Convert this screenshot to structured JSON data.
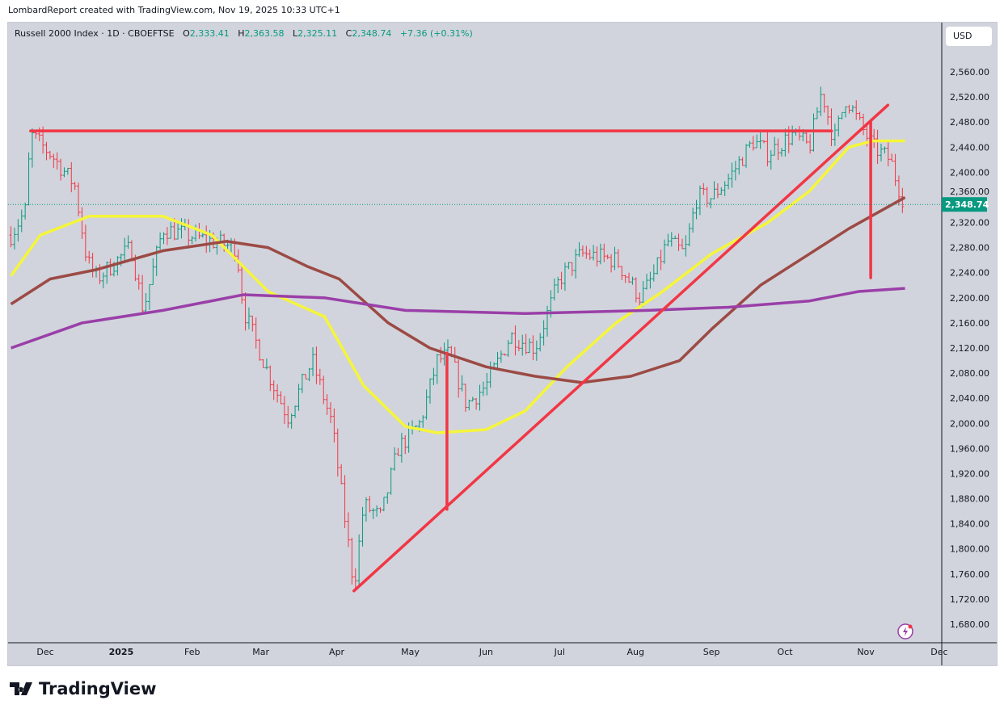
{
  "credit": "LombardReport created with TradingView.com, Nov 19, 2025 10:33 UTC+1",
  "legend": {
    "symbol": "Russell 2000 Index · 1D · CBOEFTSE",
    "o_label": "O",
    "o": "2,333.41",
    "h_label": "H",
    "h": "2,363.58",
    "l_label": "L",
    "l": "2,325.11",
    "c_label": "C",
    "c": "2,348.74",
    "change": "+7.36 (+0.31%)"
  },
  "currency": "USD",
  "brand": "TradingView",
  "colors": {
    "up": "#089981",
    "down": "#f23645",
    "ma_yellow": "#f5f53a",
    "ma_brown": "#9c4a45",
    "ma_purple": "#9a3fa8",
    "drawing": "#f23645",
    "bg": "#d1d4dc"
  },
  "chart_data": {
    "type": "ohlc",
    "title": "Russell 2000 Index · 1D · CBOEFTSE",
    "ylim": [
      1655,
      2600
    ],
    "xlim_days": [
      -15,
      382
    ],
    "x_unit": "days since Dec 1 2024",
    "last_price": 2348.74,
    "last_price_label": "2,348.74",
    "y_ticks": [
      2560,
      2520,
      2480,
      2440,
      2400,
      2360,
      2320,
      2280,
      2240,
      2200,
      2160,
      2120,
      2080,
      2040,
      2000,
      1960,
      1920,
      1880,
      1840,
      1800,
      1760,
      1720,
      1680
    ],
    "x_ticks": [
      {
        "label": "Dec",
        "day": 0
      },
      {
        "label": "2025",
        "day": 31
      },
      {
        "label": "Feb",
        "day": 60
      },
      {
        "label": "Mar",
        "day": 88
      },
      {
        "label": "Apr",
        "day": 119
      },
      {
        "label": "May",
        "day": 149
      },
      {
        "label": "Jun",
        "day": 180
      },
      {
        "label": "Jul",
        "day": 210
      },
      {
        "label": "Aug",
        "day": 241
      },
      {
        "label": "Sep",
        "day": 272
      },
      {
        "label": "Oct",
        "day": 302
      },
      {
        "label": "Nov",
        "day": 335
      },
      {
        "label": "Dec",
        "day": 365
      }
    ],
    "price_path": [
      [
        -14,
        2300
      ],
      [
        -8,
        2340
      ],
      [
        -6,
        2460
      ],
      [
        2,
        2430
      ],
      [
        12,
        2380
      ],
      [
        17,
        2260
      ],
      [
        21,
        2230
      ],
      [
        35,
        2280
      ],
      [
        40,
        2180
      ],
      [
        48,
        2310
      ],
      [
        58,
        2300
      ],
      [
        68,
        2290
      ],
      [
        78,
        2280
      ],
      [
        81,
        2180
      ],
      [
        91,
        2080
      ],
      [
        99,
        2010
      ],
      [
        109,
        2100
      ],
      [
        117,
        2000
      ],
      [
        124,
        1800
      ],
      [
        126,
        1740
      ],
      [
        130,
        1870
      ],
      [
        137,
        1850
      ],
      [
        144,
        1960
      ],
      [
        153,
        2000
      ],
      [
        160,
        2100
      ],
      [
        165,
        2110
      ],
      [
        172,
        2030
      ],
      [
        180,
        2060
      ],
      [
        190,
        2140
      ],
      [
        200,
        2120
      ],
      [
        210,
        2230
      ],
      [
        219,
        2270
      ],
      [
        233,
        2260
      ],
      [
        243,
        2200
      ],
      [
        249,
        2240
      ],
      [
        254,
        2290
      ],
      [
        261,
        2270
      ],
      [
        266,
        2360
      ],
      [
        272,
        2360
      ],
      [
        279,
        2390
      ],
      [
        289,
        2450
      ],
      [
        295,
        2430
      ],
      [
        305,
        2460
      ],
      [
        312,
        2440
      ],
      [
        317,
        2530
      ],
      [
        322,
        2450
      ],
      [
        327,
        2520
      ],
      [
        332,
        2480
      ],
      [
        338,
        2440
      ],
      [
        345,
        2420
      ],
      [
        348,
        2380
      ],
      [
        351,
        2349
      ]
    ],
    "series": [
      {
        "name": "MA yellow",
        "color": "#f5f53a",
        "points": [
          [
            -14,
            2235
          ],
          [
            -2,
            2300
          ],
          [
            18,
            2330
          ],
          [
            48,
            2330
          ],
          [
            68,
            2300
          ],
          [
            91,
            2210
          ],
          [
            114,
            2170
          ],
          [
            130,
            2060
          ],
          [
            147,
            1995
          ],
          [
            160,
            1985
          ],
          [
            180,
            1990
          ],
          [
            196,
            2020
          ],
          [
            213,
            2090
          ],
          [
            233,
            2160
          ],
          [
            252,
            2210
          ],
          [
            272,
            2270
          ],
          [
            295,
            2320
          ],
          [
            312,
            2370
          ],
          [
            328,
            2440
          ],
          [
            338,
            2450
          ],
          [
            351,
            2450
          ]
        ]
      },
      {
        "name": "MA brown",
        "color": "#9c4a45",
        "points": [
          [
            -14,
            2190
          ],
          [
            2,
            2230
          ],
          [
            21,
            2245
          ],
          [
            48,
            2275
          ],
          [
            74,
            2290
          ],
          [
            91,
            2280
          ],
          [
            107,
            2250
          ],
          [
            120,
            2230
          ],
          [
            140,
            2160
          ],
          [
            157,
            2120
          ],
          [
            180,
            2090
          ],
          [
            200,
            2075
          ],
          [
            219,
            2065
          ],
          [
            239,
            2075
          ],
          [
            259,
            2100
          ],
          [
            272,
            2150
          ],
          [
            292,
            2220
          ],
          [
            312,
            2270
          ],
          [
            328,
            2310
          ],
          [
            351,
            2360
          ]
        ]
      },
      {
        "name": "MA purple",
        "color": "#9a3fa8",
        "points": [
          [
            -14,
            2120
          ],
          [
            15,
            2160
          ],
          [
            48,
            2180
          ],
          [
            81,
            2205
          ],
          [
            114,
            2200
          ],
          [
            147,
            2180
          ],
          [
            196,
            2175
          ],
          [
            246,
            2180
          ],
          [
            279,
            2185
          ],
          [
            312,
            2195
          ],
          [
            332,
            2210
          ],
          [
            351,
            2215
          ]
        ]
      }
    ],
    "drawings": [
      {
        "name": "resistance-line",
        "points": [
          [
            -6,
            2466
          ],
          [
            321,
            2466
          ]
        ]
      },
      {
        "name": "trend-line",
        "points": [
          [
            126,
            1733
          ],
          [
            344,
            2507
          ]
        ]
      },
      {
        "name": "measure-line-1",
        "points": [
          [
            164,
            2112
          ],
          [
            164,
            1863
          ]
        ]
      },
      {
        "name": "measure-line-2",
        "points": [
          [
            337,
            2480
          ],
          [
            337,
            2232
          ]
        ]
      }
    ]
  }
}
